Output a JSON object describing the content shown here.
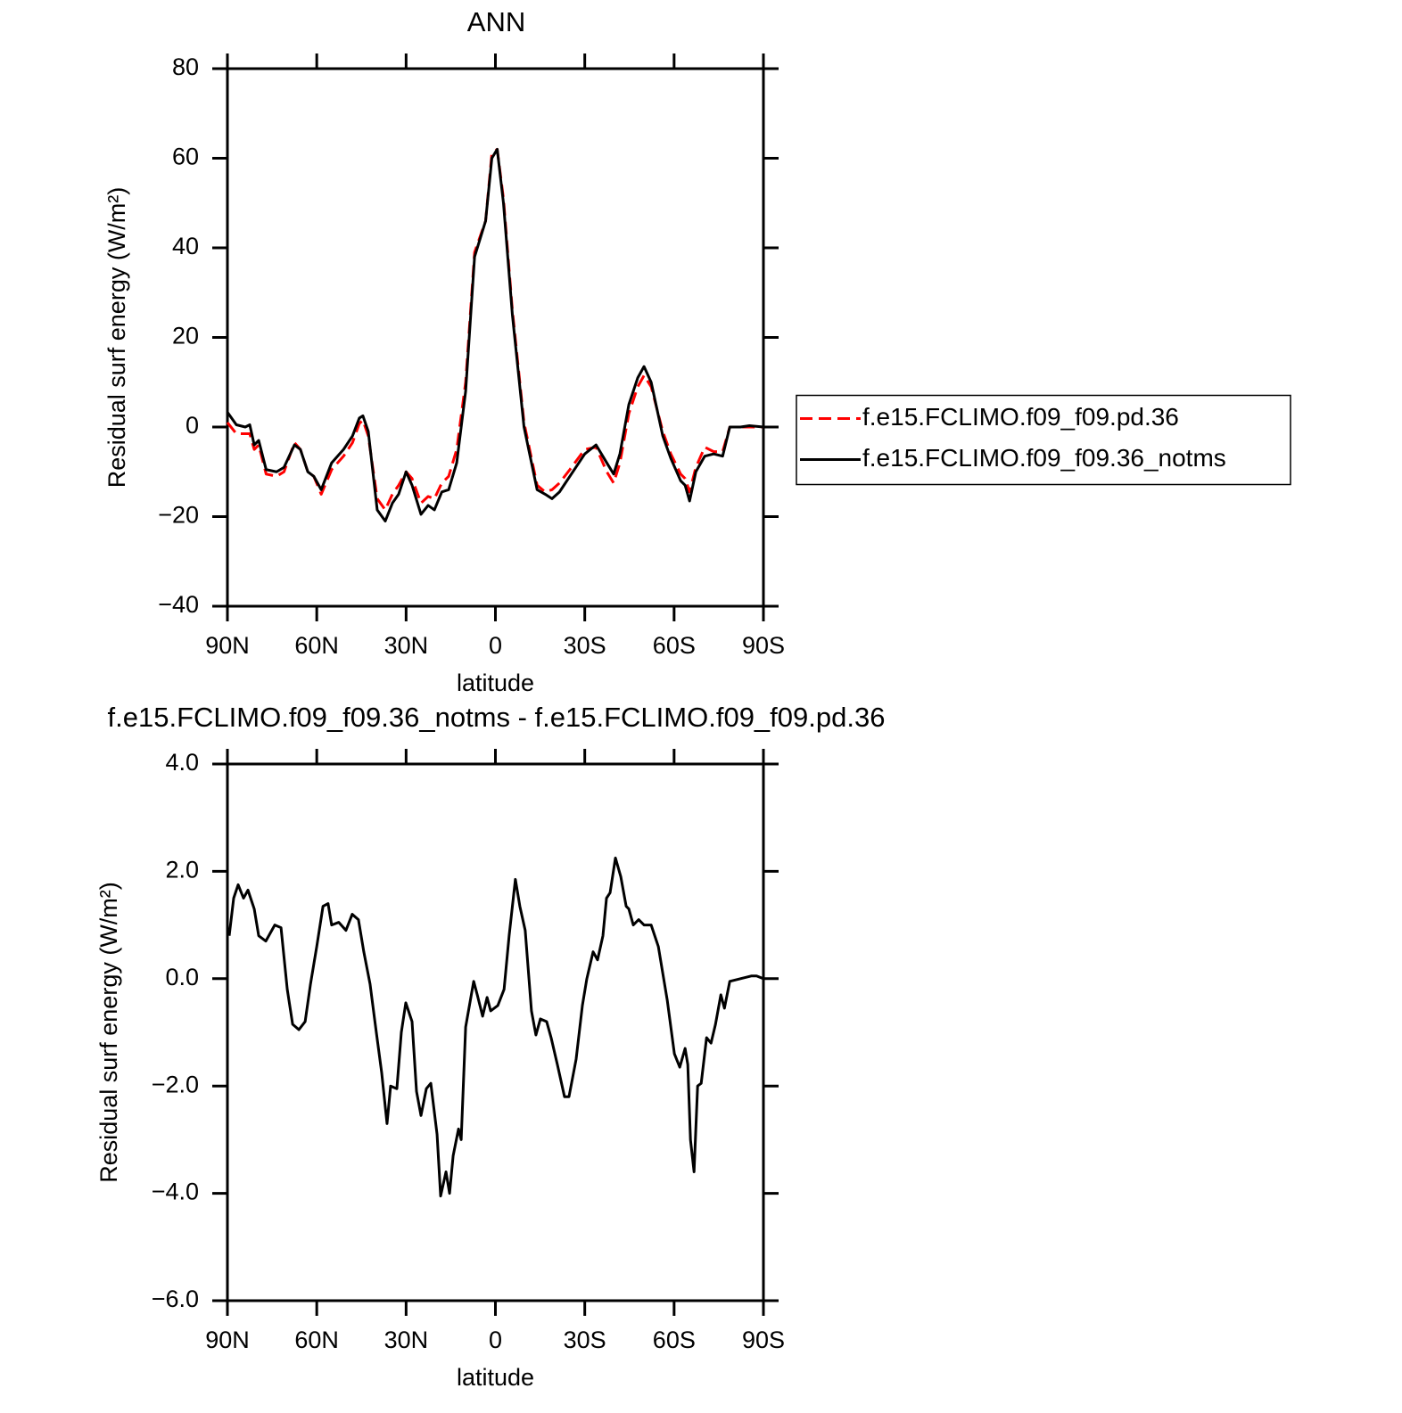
{
  "chart_data": [
    {
      "type": "line",
      "title": "ANN",
      "xlabel": "latitude",
      "ylabel": "Residual surf energy (W/m²)",
      "x": [
        90,
        87,
        84,
        82.5,
        81,
        79.5,
        77,
        73.5,
        71,
        67.5,
        65.5,
        63,
        61,
        58.5,
        55,
        51,
        48,
        45.7,
        44.5,
        42.7,
        39.7,
        37,
        34.6,
        32.5,
        30,
        28,
        25,
        22.6,
        20.5,
        18,
        15.7,
        13,
        10,
        7,
        3.3,
        1.2,
        -0.6,
        -2.7,
        -5.7,
        -9.6,
        -14,
        -16.7,
        -19,
        -21.5,
        -25,
        -30,
        -33.8,
        -37.4,
        -39.7,
        -41.8,
        -44.8,
        -47.8,
        -49.9,
        -52.3,
        -56.2,
        -58.9,
        -62.2,
        -63.7,
        -65.2,
        -67.3,
        -70.3,
        -73.3,
        -76.3,
        -78.7,
        -82.3,
        -85.3,
        -90
      ],
      "series": [
        {
          "name": "f.e15.FCLIMO.f09_f09.pd.36",
          "color": "#ff0000",
          "dash": true,
          "values": [
            1,
            -1.5,
            -1.5,
            -1.5,
            -5,
            -4,
            -10.5,
            -11,
            -10,
            -3.5,
            -5,
            -10,
            -11,
            -15,
            -9.5,
            -6.5,
            -3.5,
            0.8,
            1.5,
            -2,
            -16,
            -18.5,
            -15,
            -13,
            -10,
            -11.5,
            -17,
            -15.5,
            -16,
            -12.5,
            -11,
            -5,
            10,
            39,
            46,
            61,
            62,
            51,
            26,
            1,
            -13,
            -14.5,
            -14,
            -12.5,
            -9.5,
            -5,
            -4.5,
            -10,
            -12.5,
            -8,
            3,
            9,
            11.5,
            9,
            -1,
            -6,
            -10.5,
            -11.5,
            -14.5,
            -9,
            -4.5,
            -5.5,
            -5.5,
            0,
            0,
            0,
            0
          ]
        },
        {
          "name": "f.e15.FCLIMO.f09_f09.36_notms",
          "color": "#000000",
          "dash": false,
          "values": [
            3.3,
            0.5,
            0,
            0.5,
            -4,
            -3,
            -9.5,
            -10,
            -9,
            -4,
            -5,
            -10,
            -11,
            -14,
            -8,
            -5,
            -2,
            2,
            2.5,
            -1,
            -18.5,
            -21,
            -17,
            -15,
            -10,
            -13,
            -19.5,
            -17.5,
            -18.5,
            -14.5,
            -14,
            -8,
            8,
            38,
            46,
            60,
            62,
            50,
            25,
            0,
            -14,
            -15,
            -16,
            -14.5,
            -11,
            -6,
            -4,
            -8,
            -10.5,
            -6,
            5,
            11,
            13.5,
            10,
            -2,
            -7,
            -12,
            -13,
            -16.5,
            -10,
            -6.5,
            -6,
            -6.5,
            0,
            0,
            0.3,
            0
          ]
        }
      ],
      "xlim": [
        90,
        -90
      ],
      "xticks": [
        {
          "value": 90,
          "label": "90N"
        },
        {
          "value": 60,
          "label": "60N"
        },
        {
          "value": 30,
          "label": "30N"
        },
        0,
        {
          "value": -30,
          "label": "30S"
        },
        {
          "value": -60,
          "label": "60S"
        },
        {
          "value": -90,
          "label": "90S"
        }
      ],
      "ylim": [
        -40,
        80
      ],
      "yticks": [
        {
          "value": -40,
          "label": "−40"
        },
        {
          "value": -20,
          "label": "−20"
        },
        0,
        20,
        40,
        60,
        80
      ],
      "legend": "right"
    },
    {
      "type": "line",
      "title": "f.e15.FCLIMO.f09_f09.36_notms - f.e15.FCLIMO.f09_f09.pd.36",
      "xlabel": "latitude",
      "ylabel": "Residual surf energy (W/m²)",
      "x": [
        89.4,
        87.9,
        86.4,
        84.6,
        83.1,
        81,
        79.5,
        77.1,
        75.6,
        74.1,
        72,
        69.9,
        68.1,
        66,
        63.9,
        62.1,
        60,
        57.9,
        56.2,
        55,
        52.6,
        50.2,
        48.1,
        46,
        44.2,
        42.1,
        40,
        38.2,
        36.4,
        35.2,
        33.1,
        31.6,
        30.1,
        28,
        26.5,
        25,
        23.2,
        21.7,
        19.6,
        18.4,
        16.6,
        15.4,
        14.2,
        12.4,
        11.5,
        10,
        7.3,
        6.1,
        4.3,
        2.8,
        1.6,
        -0.8,
        -2.9,
        -4.6,
        -6.7,
        -8.2,
        -10,
        -12.1,
        -13.6,
        -15.1,
        -17.2,
        -18.7,
        -20.8,
        -23.2,
        -24.7,
        -27.1,
        -29.2,
        -30.7,
        -32.8,
        -34.3,
        -36.1,
        -37.3,
        -38.5,
        -40.3,
        -42.1,
        -43.9,
        -44.8,
        -46.3,
        -48.1,
        -49.9,
        -52.3,
        -54.7,
        -57.7,
        -60.1,
        -61.9,
        -63.7,
        -64.6,
        -65.5,
        -66.7,
        -67.9,
        -69.1,
        -70.9,
        -72.4,
        -73.9,
        -75.7,
        -76.9,
        -78.7,
        -82.3,
        -85.9,
        -87.7,
        -90
      ],
      "color": "#000000",
      "values": [
        0.8,
        1.5,
        1.75,
        1.5,
        1.65,
        1.3,
        0.8,
        0.7,
        0.85,
        1.0,
        0.95,
        -0.2,
        -0.85,
        -0.95,
        -0.8,
        -0.1,
        0.6,
        1.35,
        1.4,
        1.0,
        1.05,
        0.9,
        1.2,
        1.1,
        0.5,
        -0.1,
        -1.0,
        -1.75,
        -2.7,
        -2.0,
        -2.05,
        -1.0,
        -0.45,
        -0.8,
        -2.1,
        -2.55,
        -2.05,
        -1.95,
        -2.9,
        -4.05,
        -3.6,
        -4.0,
        -3.3,
        -2.8,
        -3.0,
        -0.9,
        -0.05,
        -0.3,
        -0.7,
        -0.35,
        -0.6,
        -0.5,
        -0.2,
        0.8,
        1.85,
        1.35,
        0.9,
        -0.6,
        -1.05,
        -0.75,
        -0.8,
        -1.1,
        -1.6,
        -2.2,
        -2.2,
        -1.5,
        -0.5,
        0.0,
        0.5,
        0.35,
        0.8,
        1.5,
        1.6,
        2.25,
        1.9,
        1.35,
        1.3,
        1.0,
        1.1,
        1.0,
        1.0,
        0.6,
        -0.4,
        -1.4,
        -1.65,
        -1.3,
        -1.6,
        -3.0,
        -3.6,
        -2.0,
        -1.95,
        -1.1,
        -1.2,
        -0.85,
        -0.3,
        -0.55,
        -0.05,
        0.0,
        0.05,
        0.05,
        0.0
      ],
      "xlim": [
        90,
        -90
      ],
      "xticks": [
        {
          "value": 90,
          "label": "90N"
        },
        {
          "value": 60,
          "label": "60N"
        },
        {
          "value": 30,
          "label": "30N"
        },
        0,
        {
          "value": -30,
          "label": "30S"
        },
        {
          "value": -60,
          "label": "60S"
        },
        {
          "value": -90,
          "label": "90S"
        }
      ],
      "ylim": [
        -6,
        4
      ],
      "yticks": [
        {
          "value": -6,
          "label": "−6.0"
        },
        {
          "value": -4,
          "label": "−4.0"
        },
        {
          "value": -2,
          "label": "−2.0"
        },
        {
          "value": 0,
          "label": "0.0"
        },
        {
          "value": 2,
          "label": "2.0"
        },
        {
          "value": 4,
          "label": "4.0"
        }
      ]
    }
  ]
}
